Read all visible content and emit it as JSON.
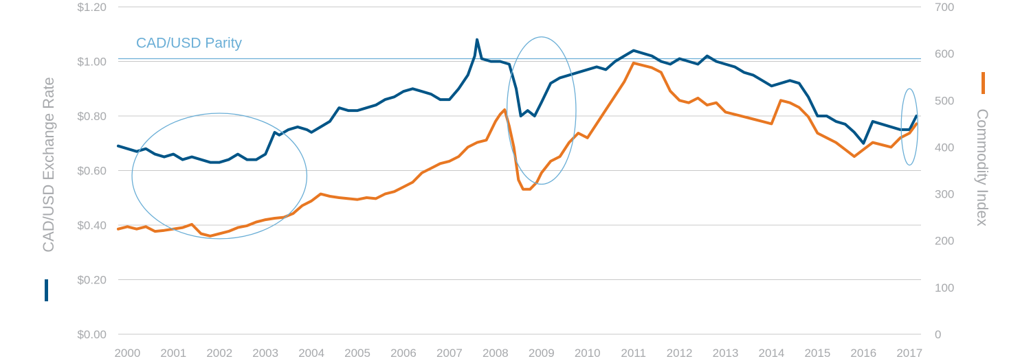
{
  "colors": {
    "cad_usd": "#005587",
    "commodity": "#e87722",
    "parity_line": "#6aaed6",
    "grid": "#c8c8c8",
    "text": "#a7a9ac"
  },
  "chart_data": {
    "type": "line",
    "ylabel": "CAD/USD Exchange Rate",
    "y2label": "Commodity Index",
    "ylim": [
      0,
      1.2
    ],
    "y2lim": [
      0,
      700
    ],
    "xlim": [
      1999.8,
      2017.25
    ],
    "yticks": [
      "$0.00",
      "$0.20",
      "$0.40",
      "$0.60",
      "$0.80",
      "$1.00",
      "$1.20"
    ],
    "yticks_values": [
      0,
      0.2,
      0.4,
      0.6,
      0.8,
      1.0,
      1.2
    ],
    "y2ticks": [
      "0",
      "100",
      "200",
      "300",
      "400",
      "500",
      "600",
      "700"
    ],
    "y2ticks_values": [
      0,
      100,
      200,
      300,
      400,
      500,
      600,
      700
    ],
    "xticks": [
      "2000",
      "2001",
      "2002",
      "2003",
      "2004",
      "2005",
      "2006",
      "2007",
      "2008",
      "2009",
      "2010",
      "2011",
      "2012",
      "2013",
      "2014",
      "2015",
      "2016",
      "2017"
    ],
    "xticks_values": [
      2000,
      2001,
      2002,
      2003,
      2004,
      2005,
      2006,
      2007,
      2008,
      2009,
      2010,
      2011,
      2012,
      2013,
      2014,
      2015,
      2016,
      2017
    ],
    "grid": "horizontal",
    "legend": "axis-labels",
    "annotations": [
      {
        "text": "CAD/USD Parity",
        "y": 1.01
      }
    ],
    "series": [
      {
        "name": "CAD/USD Exchange Rate",
        "axis": "left",
        "x": [
          1999.8,
          2000.0,
          2000.2,
          2000.4,
          2000.6,
          2000.8,
          2001.0,
          2001.2,
          2001.4,
          2001.6,
          2001.8,
          2002.0,
          2002.2,
          2002.4,
          2002.6,
          2002.8,
          2003.0,
          2003.1,
          2003.2,
          2003.3,
          2003.5,
          2003.7,
          2003.9,
          2004.0,
          2004.2,
          2004.4,
          2004.6,
          2004.8,
          2005.0,
          2005.2,
          2005.4,
          2005.6,
          2005.8,
          2006.0,
          2006.2,
          2006.4,
          2006.6,
          2006.8,
          2007.0,
          2007.2,
          2007.4,
          2007.55,
          2007.6,
          2007.7,
          2007.9,
          2008.1,
          2008.3,
          2008.45,
          2008.55,
          2008.7,
          2008.85,
          2009.0,
          2009.2,
          2009.4,
          2009.6,
          2009.8,
          2010.0,
          2010.2,
          2010.4,
          2010.6,
          2010.8,
          2011.0,
          2011.2,
          2011.4,
          2011.6,
          2011.8,
          2012.0,
          2012.2,
          2012.4,
          2012.6,
          2012.8,
          2013.0,
          2013.2,
          2013.4,
          2013.6,
          2013.8,
          2014.0,
          2014.2,
          2014.4,
          2014.6,
          2014.8,
          2015.0,
          2015.2,
          2015.4,
          2015.6,
          2015.8,
          2016.0,
          2016.2,
          2016.4,
          2016.6,
          2016.8,
          2017.0,
          2017.15
        ],
        "values": [
          0.69,
          0.68,
          0.67,
          0.68,
          0.66,
          0.65,
          0.66,
          0.64,
          0.65,
          0.64,
          0.63,
          0.63,
          0.64,
          0.66,
          0.64,
          0.64,
          0.66,
          0.7,
          0.74,
          0.73,
          0.75,
          0.76,
          0.75,
          0.74,
          0.76,
          0.78,
          0.83,
          0.82,
          0.82,
          0.83,
          0.84,
          0.86,
          0.87,
          0.89,
          0.9,
          0.89,
          0.88,
          0.86,
          0.86,
          0.9,
          0.95,
          1.02,
          1.08,
          1.01,
          1.0,
          1.0,
          0.99,
          0.9,
          0.8,
          0.82,
          0.8,
          0.85,
          0.92,
          0.94,
          0.95,
          0.96,
          0.97,
          0.98,
          0.97,
          1.0,
          1.02,
          1.04,
          1.03,
          1.02,
          1.0,
          0.99,
          1.01,
          1.0,
          0.99,
          1.02,
          1.0,
          0.99,
          0.98,
          0.96,
          0.95,
          0.93,
          0.91,
          0.92,
          0.93,
          0.92,
          0.87,
          0.8,
          0.8,
          0.78,
          0.77,
          0.74,
          0.7,
          0.78,
          0.77,
          0.76,
          0.75,
          0.75,
          0.8
        ]
      },
      {
        "name": "Commodity Index",
        "axis": "right",
        "x": [
          1999.8,
          2000.0,
          2000.2,
          2000.4,
          2000.6,
          2000.8,
          2001.0,
          2001.2,
          2001.4,
          2001.6,
          2001.8,
          2002.0,
          2002.2,
          2002.4,
          2002.6,
          2002.8,
          2003.0,
          2003.2,
          2003.4,
          2003.6,
          2003.8,
          2004.0,
          2004.2,
          2004.4,
          2004.6,
          2004.8,
          2005.0,
          2005.2,
          2005.4,
          2005.6,
          2005.8,
          2006.0,
          2006.2,
          2006.4,
          2006.6,
          2006.8,
          2007.0,
          2007.2,
          2007.4,
          2007.6,
          2007.8,
          2008.0,
          2008.1,
          2008.2,
          2008.3,
          2008.4,
          2008.5,
          2008.6,
          2008.75,
          2008.9,
          2009.0,
          2009.2,
          2009.4,
          2009.6,
          2009.8,
          2010.0,
          2010.2,
          2010.4,
          2010.6,
          2010.8,
          2011.0,
          2011.2,
          2011.4,
          2011.6,
          2011.8,
          2012.0,
          2012.2,
          2012.4,
          2012.6,
          2012.8,
          2013.0,
          2013.2,
          2013.4,
          2013.6,
          2013.8,
          2014.0,
          2014.2,
          2014.4,
          2014.6,
          2014.8,
          2015.0,
          2015.2,
          2015.4,
          2015.6,
          2015.8,
          2016.0,
          2016.2,
          2016.4,
          2016.6,
          2016.8,
          2017.0,
          2017.15
        ],
        "values": [
          225,
          230,
          225,
          230,
          220,
          222,
          225,
          228,
          235,
          215,
          210,
          215,
          220,
          228,
          232,
          240,
          245,
          248,
          250,
          258,
          275,
          285,
          300,
          295,
          292,
          290,
          288,
          292,
          290,
          300,
          305,
          315,
          325,
          345,
          355,
          365,
          370,
          380,
          400,
          410,
          415,
          455,
          470,
          480,
          445,
          400,
          330,
          310,
          310,
          325,
          345,
          370,
          380,
          410,
          430,
          420,
          450,
          480,
          510,
          540,
          580,
          575,
          570,
          560,
          520,
          500,
          495,
          505,
          490,
          495,
          475,
          470,
          465,
          460,
          455,
          450,
          500,
          495,
          485,
          465,
          430,
          420,
          410,
          395,
          380,
          395,
          410,
          405,
          400,
          420,
          430,
          450
        ]
      }
    ],
    "highlight_ellipses": [
      {
        "period": "2000–2003",
        "cx": 2002.0,
        "cy": 0.58,
        "rx": 1.9,
        "ry": 0.23
      },
      {
        "period": "2008–2009",
        "cx": 2009.0,
        "cy": 0.82,
        "rx": 0.75,
        "ry": 0.27
      },
      {
        "period": "2017",
        "cx": 2017.0,
        "cy": 0.76,
        "rx": 0.18,
        "ry": 0.14
      }
    ]
  }
}
